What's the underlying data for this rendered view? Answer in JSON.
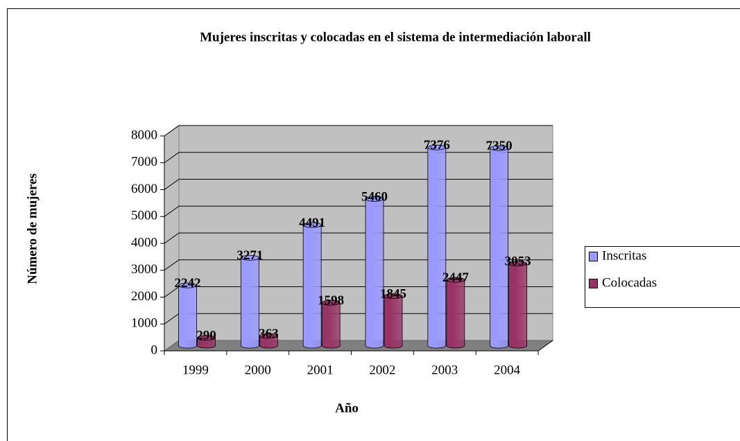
{
  "chart_data": {
    "type": "bar",
    "title": "Mujeres inscritas y colocadas en el sistema de intermediación laborall",
    "x_label": "Año",
    "y_label": "Número de mujeres",
    "categories": [
      "1999",
      "2000",
      "2001",
      "2002",
      "2003",
      "2004"
    ],
    "series": [
      {
        "name": "Inscritas",
        "color": "#9999ff",
        "values": [
          2242,
          3271,
          4491,
          5460,
          7376,
          7350
        ]
      },
      {
        "name": "Colocadas",
        "color": "#993366",
        "values": [
          290,
          363,
          1598,
          1845,
          2447,
          3053
        ]
      }
    ],
    "ylim": [
      0,
      8000
    ],
    "yticks": [
      0,
      1000,
      2000,
      3000,
      4000,
      5000,
      6000,
      7000,
      8000
    ],
    "grid": true,
    "legend": "right"
  }
}
